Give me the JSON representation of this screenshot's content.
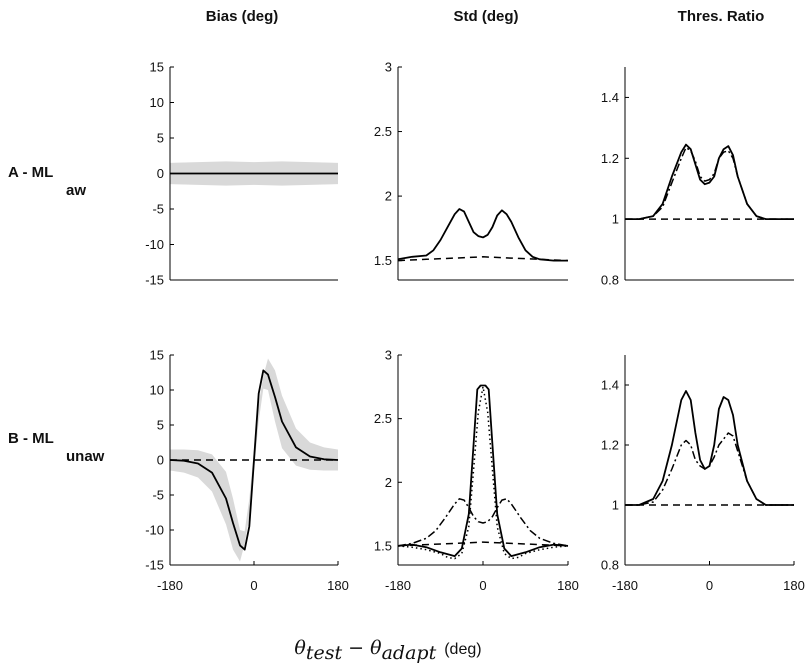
{
  "figure": {
    "column_titles": [
      "Bias (deg)",
      "Std (deg)",
      "Thres. Ratio"
    ],
    "row_labels": [
      {
        "main": "A - ML",
        "sub": "aw"
      },
      {
        "main": "B - ML",
        "sub": "unaw"
      }
    ],
    "xlabel": {
      "theta": "θ",
      "test": "test",
      "minus": " − ",
      "adapt": "adapt",
      "unit": "(deg)"
    }
  },
  "chart_data": [
    {
      "id": "A-bias",
      "type": "line",
      "title": "Bias (deg)",
      "row": "A - ML aw",
      "xlim": [
        -180,
        180
      ],
      "ylim": [
        -15,
        15
      ],
      "xticks": [],
      "yticks": [
        -15,
        -10,
        -5,
        0,
        5,
        10,
        15
      ],
      "band": {
        "x": [
          -180,
          -120,
          -60,
          0,
          60,
          120,
          180
        ],
        "upper": [
          1.5,
          1.6,
          1.7,
          1.6,
          1.7,
          1.6,
          1.5
        ],
        "lower": [
          -1.5,
          -1.6,
          -1.7,
          -1.6,
          -1.7,
          -1.6,
          -1.5
        ],
        "color": "#d9d9d9"
      },
      "series": [
        {
          "style": "solid",
          "x": [
            -180,
            -90,
            0,
            90,
            180
          ],
          "y": [
            0,
            0,
            0,
            0,
            0
          ]
        }
      ]
    },
    {
      "id": "A-std",
      "type": "line",
      "title": "Std (deg)",
      "row": "A - ML aw",
      "xlim": [
        -180,
        180
      ],
      "ylim": [
        1.35,
        3
      ],
      "xticks": [],
      "yticks": [
        1.5,
        2,
        2.5,
        3
      ],
      "series": [
        {
          "style": "solid",
          "x": [
            -180,
            -150,
            -120,
            -105,
            -90,
            -75,
            -60,
            -50,
            -40,
            -30,
            -20,
            -10,
            0,
            10,
            20,
            30,
            40,
            50,
            60,
            75,
            90,
            105,
            120,
            150,
            180
          ],
          "y": [
            1.51,
            1.53,
            1.54,
            1.58,
            1.66,
            1.76,
            1.86,
            1.9,
            1.88,
            1.8,
            1.72,
            1.69,
            1.68,
            1.7,
            1.76,
            1.85,
            1.89,
            1.86,
            1.8,
            1.68,
            1.58,
            1.53,
            1.51,
            1.5,
            1.5
          ]
        },
        {
          "style": "dashed",
          "x": [
            -180,
            -120,
            -60,
            0,
            60,
            120,
            180
          ],
          "y": [
            1.5,
            1.51,
            1.52,
            1.53,
            1.52,
            1.51,
            1.5
          ]
        }
      ]
    },
    {
      "id": "A-thres",
      "type": "line",
      "title": "Thres. Ratio",
      "row": "A - ML aw",
      "xlim": [
        -180,
        180
      ],
      "ylim": [
        0.8,
        1.5
      ],
      "xticks": [],
      "yticks": [
        0.8,
        1,
        1.2,
        1.4
      ],
      "series": [
        {
          "style": "solid",
          "x": [
            -180,
            -150,
            -120,
            -100,
            -80,
            -60,
            -50,
            -40,
            -30,
            -20,
            -10,
            0,
            10,
            20,
            30,
            40,
            50,
            60,
            80,
            100,
            120,
            150,
            180
          ],
          "y": [
            1.0,
            1.0,
            1.01,
            1.05,
            1.14,
            1.22,
            1.245,
            1.23,
            1.18,
            1.13,
            1.115,
            1.12,
            1.14,
            1.2,
            1.23,
            1.24,
            1.21,
            1.14,
            1.05,
            1.01,
            1.0,
            1.0,
            1.0
          ]
        },
        {
          "style": "dashdot",
          "x": [
            -180,
            -150,
            -120,
            -100,
            -80,
            -60,
            -50,
            -40,
            -30,
            -20,
            -10,
            0,
            10,
            20,
            30,
            40,
            50,
            60,
            80,
            100,
            120,
            150,
            180
          ],
          "y": [
            1.0,
            1.0,
            1.01,
            1.04,
            1.12,
            1.2,
            1.235,
            1.225,
            1.19,
            1.14,
            1.125,
            1.13,
            1.15,
            1.2,
            1.22,
            1.225,
            1.2,
            1.14,
            1.05,
            1.01,
            1.0,
            1.0,
            1.0
          ]
        },
        {
          "style": "dashed",
          "x": [
            -180,
            180
          ],
          "y": [
            1.0,
            1.0
          ]
        }
      ]
    },
    {
      "id": "B-bias",
      "type": "line",
      "title": "Bias (deg)",
      "row": "B - ML unaw",
      "xlim": [
        -180,
        180
      ],
      "ylim": [
        -15,
        15
      ],
      "xticks": [
        -180,
        0,
        180
      ],
      "yticks": [
        -15,
        -10,
        -5,
        0,
        5,
        10,
        15
      ],
      "band": {
        "x": [
          -180,
          -150,
          -120,
          -90,
          -60,
          -45,
          -30,
          -20,
          -10,
          0,
          10,
          20,
          30,
          45,
          60,
          90,
          120,
          150,
          180
        ],
        "upper": [
          1.5,
          1.5,
          1.4,
          0.8,
          -1.7,
          -5.5,
          -10.0,
          -10.2,
          -5.5,
          1.5,
          8.0,
          12.0,
          14.5,
          12.8,
          9.2,
          4.5,
          2.5,
          1.8,
          1.5
        ],
        "lower": [
          -1.5,
          -1.8,
          -2.5,
          -4.5,
          -9.2,
          -12.8,
          -14.5,
          -12.0,
          -8.0,
          -1.5,
          5.5,
          10.2,
          10.0,
          5.5,
          1.7,
          -0.8,
          -1.4,
          -1.5,
          -1.5
        ],
        "color": "#d9d9d9"
      },
      "series": [
        {
          "style": "solid",
          "x": [
            -180,
            -150,
            -120,
            -90,
            -60,
            -45,
            -30,
            -20,
            -10,
            0,
            10,
            20,
            30,
            45,
            60,
            90,
            120,
            150,
            180
          ],
          "y": [
            0,
            -0.1,
            -0.5,
            -1.8,
            -5.5,
            -9,
            -12.2,
            -12.8,
            -9.5,
            0,
            9.5,
            12.8,
            12.2,
            9,
            5.5,
            1.8,
            0.5,
            0.1,
            0
          ]
        },
        {
          "style": "dashed",
          "x": [
            -180,
            180
          ],
          "y": [
            0,
            0
          ]
        }
      ]
    },
    {
      "id": "B-std",
      "type": "line",
      "title": "Std (deg)",
      "row": "B - ML unaw",
      "xlim": [
        -180,
        180
      ],
      "ylim": [
        1.35,
        3
      ],
      "xticks": [
        -180,
        0,
        180
      ],
      "yticks": [
        1.5,
        2,
        2.5,
        3
      ],
      "series": [
        {
          "style": "solid",
          "x": [
            -180,
            -150,
            -120,
            -90,
            -60,
            -45,
            -30,
            -20,
            -12,
            -5,
            0,
            5,
            12,
            20,
            30,
            45,
            60,
            90,
            120,
            150,
            180
          ],
          "y": [
            1.5,
            1.51,
            1.49,
            1.45,
            1.42,
            1.48,
            1.75,
            2.3,
            2.73,
            2.76,
            2.76,
            2.76,
            2.73,
            2.3,
            1.75,
            1.48,
            1.42,
            1.45,
            1.49,
            1.51,
            1.5
          ]
        },
        {
          "style": "dotted",
          "x": [
            -180,
            -150,
            -120,
            -90,
            -75,
            -60,
            -45,
            -30,
            -20,
            -10,
            0,
            10,
            20,
            30,
            45,
            60,
            75,
            90,
            120,
            150,
            180
          ],
          "y": [
            1.5,
            1.49,
            1.47,
            1.44,
            1.41,
            1.4,
            1.44,
            1.65,
            2.1,
            2.55,
            2.75,
            2.55,
            2.1,
            1.65,
            1.44,
            1.4,
            1.41,
            1.44,
            1.47,
            1.49,
            1.5
          ]
        },
        {
          "style": "dashdot",
          "x": [
            -180,
            -150,
            -120,
            -100,
            -80,
            -60,
            -50,
            -40,
            -30,
            -20,
            -10,
            0,
            10,
            20,
            30,
            40,
            50,
            60,
            80,
            100,
            120,
            150,
            180
          ],
          "y": [
            1.5,
            1.52,
            1.56,
            1.62,
            1.72,
            1.83,
            1.87,
            1.86,
            1.8,
            1.73,
            1.69,
            1.68,
            1.69,
            1.73,
            1.8,
            1.86,
            1.87,
            1.83,
            1.72,
            1.62,
            1.56,
            1.52,
            1.5
          ]
        },
        {
          "style": "dashed",
          "x": [
            -180,
            -120,
            -60,
            0,
            60,
            120,
            180
          ],
          "y": [
            1.5,
            1.51,
            1.52,
            1.53,
            1.52,
            1.51,
            1.5
          ]
        }
      ]
    },
    {
      "id": "B-thres",
      "type": "line",
      "title": "Thres. Ratio",
      "row": "B - ML unaw",
      "xlim": [
        -180,
        180
      ],
      "ylim": [
        0.8,
        1.5
      ],
      "xticks": [
        -180,
        0,
        180
      ],
      "yticks": [
        0.8,
        1,
        1.2,
        1.4
      ],
      "series": [
        {
          "style": "solid",
          "x": [
            -180,
            -150,
            -120,
            -100,
            -80,
            -60,
            -50,
            -40,
            -30,
            -20,
            -10,
            0,
            10,
            20,
            30,
            40,
            50,
            60,
            80,
            100,
            120,
            150,
            180
          ],
          "y": [
            1.0,
            1.0,
            1.02,
            1.08,
            1.2,
            1.35,
            1.38,
            1.35,
            1.24,
            1.15,
            1.12,
            1.13,
            1.2,
            1.32,
            1.36,
            1.35,
            1.3,
            1.2,
            1.08,
            1.02,
            1.0,
            1.0,
            1.0
          ]
        },
        {
          "style": "dashdot",
          "x": [
            -180,
            -150,
            -120,
            -100,
            -80,
            -60,
            -50,
            -40,
            -30,
            -20,
            -10,
            0,
            10,
            20,
            30,
            40,
            50,
            60,
            80,
            100,
            120,
            150,
            180
          ],
          "y": [
            1.0,
            1.0,
            1.01,
            1.05,
            1.12,
            1.2,
            1.215,
            1.2,
            1.15,
            1.13,
            1.12,
            1.13,
            1.16,
            1.2,
            1.22,
            1.24,
            1.23,
            1.18,
            1.08,
            1.02,
            1.0,
            1.0,
            1.0
          ]
        },
        {
          "style": "dashed",
          "x": [
            -180,
            180
          ],
          "y": [
            1.0,
            1.0
          ]
        }
      ]
    }
  ]
}
